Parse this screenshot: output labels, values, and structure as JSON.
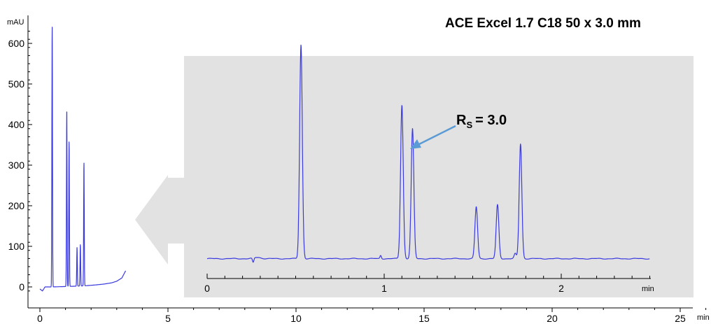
{
  "chart_data": [
    {
      "type": "line",
      "title": "ACE Excel 1.7 C18 50 x 3.0 mm",
      "xlabel": "min",
      "ylabel": "mAU",
      "xlim": [
        0,
        26
      ],
      "ylim": [
        -20,
        650
      ],
      "x_ticks": [
        "0",
        "5",
        "10",
        "15",
        "20",
        "25"
      ],
      "x_tick_values": [
        0,
        5,
        10,
        15,
        20,
        25
      ],
      "y_ticks": [
        "0",
        "100",
        "200",
        "300",
        "400",
        "500",
        "600"
      ],
      "y_tick_values": [
        0,
        100,
        200,
        300,
        400,
        500,
        600
      ],
      "color": "#3a3ae0",
      "baseline": [
        [
          0,
          -5
        ],
        [
          0.1,
          -10
        ],
        [
          0.2,
          0
        ],
        [
          0.5,
          0
        ],
        [
          1.0,
          1
        ],
        [
          1.5,
          2
        ],
        [
          1.8,
          3
        ],
        [
          2.0,
          4
        ],
        [
          2.2,
          5
        ],
        [
          2.5,
          7
        ],
        [
          2.8,
          10
        ],
        [
          3.0,
          14
        ],
        [
          3.2,
          22
        ],
        [
          3.35,
          40
        ]
      ],
      "peaks": [
        {
          "x": 0.48,
          "y": 640
        },
        {
          "x": 1.05,
          "y": 437
        },
        {
          "x": 1.14,
          "y": 357
        },
        {
          "x": 1.45,
          "y": 98
        },
        {
          "x": 1.58,
          "y": 104
        },
        {
          "x": 1.72,
          "y": 305
        }
      ]
    },
    {
      "type": "line",
      "title": "",
      "xlabel": "min",
      "xlim": [
        0,
        2.6
      ],
      "x_ticks": [
        "0",
        "1",
        "2"
      ],
      "x_tick_values": [
        0,
        1,
        2
      ],
      "background": "#e2e2e2",
      "color": "#3a3ae0",
      "peaks": [
        {
          "x": 0.53,
          "y": 525
        },
        {
          "x": 1.1,
          "y": 378
        },
        {
          "x": 1.16,
          "y": 320
        },
        {
          "x": 1.52,
          "y": 130
        },
        {
          "x": 1.64,
          "y": 135
        },
        {
          "x": 1.77,
          "y": 283
        }
      ],
      "annotation": {
        "label": "R",
        "subscript": "S",
        "value": "= 3.0"
      }
    }
  ]
}
